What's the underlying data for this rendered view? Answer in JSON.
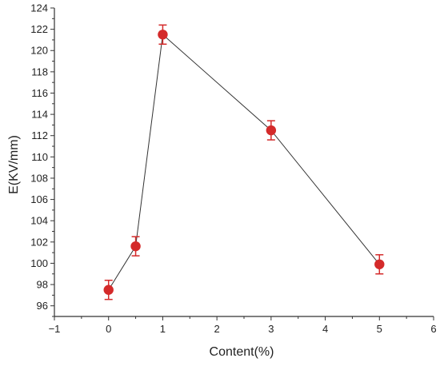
{
  "chart_data": {
    "type": "scatter",
    "xlabel": "Content(%)",
    "ylabel": "E(KV/mm)",
    "xlim": [
      -1,
      6
    ],
    "ylim": [
      95,
      124
    ],
    "xticks": [
      "−1",
      "0",
      "1",
      "2",
      "3",
      "4",
      "5",
      "6"
    ],
    "yticks": [
      "96",
      "98",
      "100",
      "102",
      "104",
      "106",
      "108",
      "110",
      "112",
      "114",
      "116",
      "118",
      "120",
      "122",
      "124"
    ],
    "grid": false,
    "connect_points": true,
    "marker_color": "#d42a2a",
    "line_color": "#333333",
    "series": [
      {
        "x": [
          0,
          0.5,
          1,
          3,
          5
        ],
        "y": [
          97.5,
          101.6,
          121.5,
          112.5,
          99.9
        ],
        "error": [
          0.9,
          0.9,
          0.9,
          0.9,
          0.9
        ]
      }
    ]
  }
}
